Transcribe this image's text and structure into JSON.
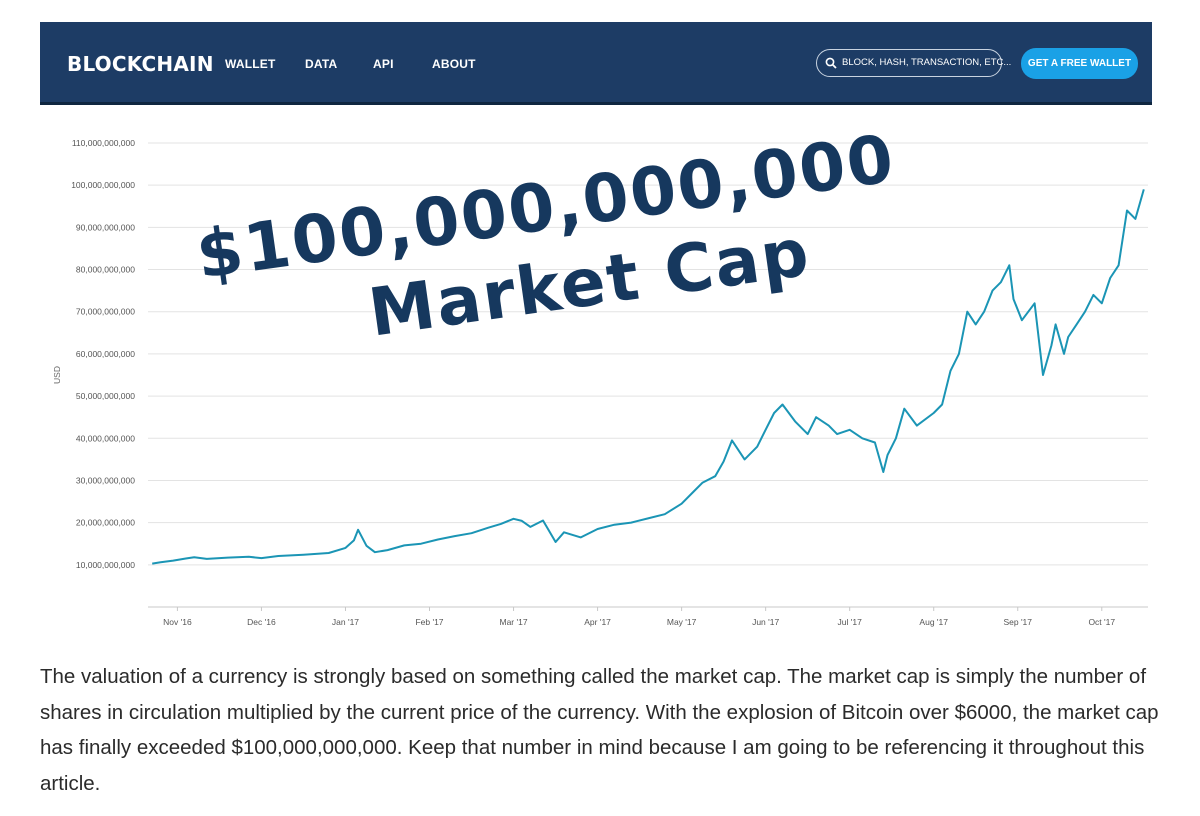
{
  "header": {
    "brand": "BLOCKCHAIN",
    "nav": [
      "WALLET",
      "DATA",
      "API",
      "ABOUT"
    ],
    "search_placeholder": "BLOCK, HASH, TRANSACTION, ETC...",
    "cta_label": "GET A FREE WALLET"
  },
  "colors": {
    "nav_bg": "#1d3c65",
    "cta": "#1aa1e6",
    "line": "#1b95b5",
    "overlay_text": "#16385e"
  },
  "overlay": {
    "line1": "$100,000,000,000",
    "line2": "Market Cap"
  },
  "chart_data": {
    "type": "line",
    "title": "",
    "xlabel": "",
    "ylabel": "USD",
    "ylim": [
      0,
      110000000000
    ],
    "yticks": [
      10000000000,
      20000000000,
      30000000000,
      40000000000,
      50000000000,
      60000000000,
      70000000000,
      80000000000,
      90000000000,
      100000000000,
      110000000000
    ],
    "ytick_labels": [
      "10,000,000,000",
      "20,000,000,000",
      "30,000,000,000",
      "40,000,000,000",
      "50,000,000,000",
      "60,000,000,000",
      "70,000,000,000",
      "80,000,000,000",
      "90,000,000,000",
      "100,000,000,000",
      "110,000,000,000"
    ],
    "xlim": [
      -0.35,
      11.55
    ],
    "xticks": [
      0,
      1,
      2,
      3,
      4,
      5,
      6,
      7,
      8,
      9,
      10,
      11
    ],
    "xtick_labels": [
      "Nov '16",
      "Dec '16",
      "Jan '17",
      "Feb '17",
      "Mar '17",
      "Apr '17",
      "May '17",
      "Jun '17",
      "Jul '17",
      "Aug '17",
      "Sep '17",
      "Oct '17"
    ],
    "grid": true,
    "series": [
      {
        "name": "Market Cap (USD)",
        "x": [
          -0.3,
          -0.2,
          -0.05,
          0.1,
          0.2,
          0.35,
          0.6,
          0.85,
          1.0,
          1.2,
          1.5,
          1.8,
          2.0,
          2.1,
          2.15,
          2.25,
          2.35,
          2.5,
          2.7,
          2.9,
          3.1,
          3.3,
          3.5,
          3.7,
          3.85,
          4.0,
          4.1,
          4.2,
          4.35,
          4.5,
          4.6,
          4.8,
          5.0,
          5.2,
          5.4,
          5.6,
          5.8,
          6.0,
          6.15,
          6.25,
          6.4,
          6.5,
          6.6,
          6.75,
          6.9,
          7.0,
          7.1,
          7.2,
          7.35,
          7.5,
          7.6,
          7.75,
          7.85,
          8.0,
          8.15,
          8.3,
          8.4,
          8.45,
          8.55,
          8.65,
          8.8,
          9.0,
          9.1,
          9.2,
          9.3,
          9.4,
          9.5,
          9.6,
          9.7,
          9.8,
          9.9,
          9.95,
          10.05,
          10.2,
          10.3,
          10.4,
          10.45,
          10.55,
          10.6,
          10.7,
          10.8,
          10.9,
          11.0,
          11.1,
          11.2,
          11.3,
          11.4,
          11.5
        ],
        "values": [
          10300000000,
          10600000000,
          11000000000,
          11500000000,
          11800000000,
          11400000000,
          11700000000,
          11900000000,
          11600000000,
          12100000000,
          12400000000,
          12800000000,
          14000000000,
          15800000000,
          18300000000,
          14500000000,
          13000000000,
          13500000000,
          14600000000,
          15000000000,
          16000000000,
          16800000000,
          17500000000,
          18800000000,
          19700000000,
          20900000000,
          20400000000,
          19000000000,
          20500000000,
          15400000000,
          17700000000,
          16500000000,
          18500000000,
          19500000000,
          20000000000,
          21000000000,
          22000000000,
          24500000000,
          27500000000,
          29500000000,
          31000000000,
          34500000000,
          39500000000,
          35000000000,
          38000000000,
          42000000000,
          46000000000,
          48000000000,
          44000000000,
          41000000000,
          45000000000,
          43000000000,
          41000000000,
          42000000000,
          40000000000,
          39000000000,
          32000000000,
          36000000000,
          40000000000,
          47000000000,
          43000000000,
          46000000000,
          48000000000,
          56000000000,
          60000000000,
          70000000000,
          67000000000,
          70000000000,
          75000000000,
          77000000000,
          81000000000,
          73000000000,
          68000000000,
          72000000000,
          55000000000,
          62000000000,
          67000000000,
          60000000000,
          64000000000,
          67000000000,
          70000000000,
          74000000000,
          72000000000,
          78000000000,
          81000000000,
          94000000000,
          92000000000,
          99000000000
        ]
      }
    ]
  },
  "article": {
    "paragraph": "The valuation of a currency is strongly based on something called the market cap. The market cap is simply the number of shares in circulation multiplied by the current price of the currency. With the explosion of Bitcoin over $6000, the market cap has finally exceeded $100,000,000,000. Keep that number in mind because I am going to be referencing it throughout this article."
  }
}
